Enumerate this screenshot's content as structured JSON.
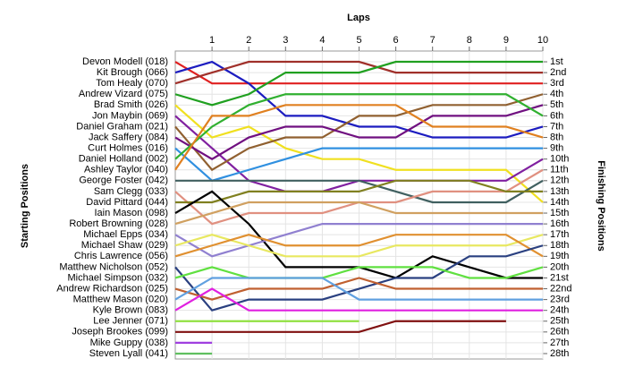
{
  "chart_data": {
    "type": "line",
    "title": "Laps",
    "y_label": "Starting Positions",
    "y2_label": "Finishing Positions",
    "x": [
      0,
      1,
      2,
      3,
      4,
      5,
      6,
      7,
      8,
      9,
      10
    ],
    "xlim": [
      0,
      10
    ],
    "xticks": [
      1,
      2,
      3,
      4,
      5,
      6,
      7,
      8,
      9,
      10
    ],
    "ylim": [
      0.5,
      28.5
    ],
    "y_inverted": true,
    "grid": true,
    "y2lim": [
      0.5,
      28.5
    ],
    "y2ticks": [
      {
        "value": 1,
        "label": "1st"
      },
      {
        "value": 2,
        "label": "2nd"
      },
      {
        "value": 3,
        "label": "3rd"
      },
      {
        "value": 4,
        "label": "4th"
      },
      {
        "value": 5,
        "label": "5th"
      },
      {
        "value": 6,
        "label": "6th"
      },
      {
        "value": 7,
        "label": "7th"
      },
      {
        "value": 8,
        "label": "8th"
      },
      {
        "value": 9,
        "label": "9th"
      },
      {
        "value": 10,
        "label": "10th"
      },
      {
        "value": 11,
        "label": "11th"
      },
      {
        "value": 12,
        "label": "12th"
      },
      {
        "value": 13,
        "label": "13th"
      },
      {
        "value": 14,
        "label": "14th"
      },
      {
        "value": 15,
        "label": "15th"
      },
      {
        "value": 16,
        "label": "16th"
      },
      {
        "value": 17,
        "label": "17th"
      },
      {
        "value": 18,
        "label": "18th"
      },
      {
        "value": 19,
        "label": "19th"
      },
      {
        "value": 20,
        "label": "20th"
      },
      {
        "value": 21,
        "label": "21st"
      },
      {
        "value": 22,
        "label": "22nd"
      },
      {
        "value": 23,
        "label": "23rd"
      },
      {
        "value": 24,
        "label": "24th"
      },
      {
        "value": 25,
        "label": "25th"
      },
      {
        "value": 26,
        "label": "26th"
      },
      {
        "value": 27,
        "label": "27th"
      },
      {
        "value": 28,
        "label": "28th"
      }
    ],
    "series": [
      {
        "name": "Devon Modell (018)",
        "color": "#e02020",
        "values": [
          1,
          3,
          3,
          3,
          3,
          3,
          3,
          3,
          3,
          3,
          3
        ]
      },
      {
        "name": "Kit Brough (066)",
        "color": "#1c1cc0",
        "values": [
          2,
          1,
          3,
          6,
          6,
          7,
          7,
          8,
          8,
          8,
          7
        ]
      },
      {
        "name": "Tom Healy (070)",
        "color": "#a0302a",
        "values": [
          3,
          2,
          1,
          1,
          1,
          1,
          2,
          2,
          2,
          2,
          2
        ]
      },
      {
        "name": "Andrew Vizard (075)",
        "color": "#20a020",
        "values": [
          4,
          5,
          4,
          2,
          2,
          2,
          1,
          1,
          1,
          1,
          1
        ]
      },
      {
        "name": "Brad Smith (026)",
        "color": "#f0e020",
        "values": [
          5,
          8,
          7,
          9,
          10,
          10,
          11,
          11,
          11,
          11,
          14
        ]
      },
      {
        "name": "Jon Maybin (069)",
        "color": "#8020a0",
        "values": [
          6,
          9,
          12,
          13,
          13,
          12,
          12,
          12,
          12,
          12,
          10
        ]
      },
      {
        "name": "Daniel Graham (021)",
        "color": "#906030",
        "values": [
          7,
          11,
          9,
          8,
          8,
          6,
          6,
          5,
          5,
          5,
          4
        ]
      },
      {
        "name": "Jack Saffery (084)",
        "color": "#701080",
        "values": [
          8,
          10,
          8,
          7,
          7,
          8,
          8,
          6,
          6,
          6,
          5
        ]
      },
      {
        "name": "Curt Holmes (016)",
        "color": "#3090e0",
        "values": [
          9,
          12,
          11,
          10,
          9,
          9,
          9,
          9,
          9,
          9,
          9
        ]
      },
      {
        "name": "Daniel Holland (002)",
        "color": "#30b030",
        "values": [
          10,
          7,
          5,
          4,
          4,
          4,
          4,
          4,
          4,
          4,
          6
        ]
      },
      {
        "name": "Ashley Taylor (040)",
        "color": "#e08020",
        "values": [
          11,
          6,
          6,
          5,
          5,
          5,
          5,
          7,
          7,
          7,
          8
        ]
      },
      {
        "name": "George Foster (042)",
        "color": "#406060",
        "values": [
          12,
          12,
          12,
          12,
          12,
          12,
          13,
          14,
          14,
          14,
          12
        ]
      },
      {
        "name": "Sam Clegg (033)",
        "color": "#e09080",
        "values": [
          13,
          16,
          15,
          15,
          15,
          14,
          14,
          13,
          13,
          13,
          11
        ]
      },
      {
        "name": "David Pittard (044)",
        "color": "#808020",
        "values": [
          14,
          14,
          13,
          13,
          13,
          13,
          12,
          12,
          12,
          13,
          13
        ]
      },
      {
        "name": "Iain Mason (098)",
        "color": "#000000",
        "values": [
          15,
          13,
          16,
          20,
          20,
          20,
          21,
          19,
          20,
          21,
          21
        ]
      },
      {
        "name": "Robert Browning (028)",
        "color": "#d0a060",
        "values": [
          16,
          15,
          14,
          14,
          14,
          14,
          15,
          15,
          15,
          15,
          15
        ]
      },
      {
        "name": "Michael Epps (034)",
        "color": "#9080d0",
        "values": [
          17,
          19,
          18,
          17,
          16,
          16,
          16,
          16,
          16,
          16,
          16
        ]
      },
      {
        "name": "Michael Shaw (029)",
        "color": "#e8e860",
        "values": [
          18,
          17,
          18,
          19,
          19,
          19,
          18,
          18,
          18,
          18,
          17
        ]
      },
      {
        "name": "Chris Lawrence (056)",
        "color": "#e09030",
        "values": [
          19,
          18,
          17,
          18,
          18,
          18,
          17,
          17,
          17,
          17,
          19
        ]
      },
      {
        "name": "Matthew Nicholson (052)",
        "color": "#2a4080",
        "values": [
          20,
          24,
          23,
          23,
          23,
          22,
          21,
          21,
          19,
          19,
          18
        ]
      },
      {
        "name": "Michael Simpson (032)",
        "color": "#60e040",
        "values": [
          21,
          20,
          21,
          21,
          21,
          20,
          20,
          20,
          21,
          21,
          20
        ]
      },
      {
        "name": "Andrew Richardson (025)",
        "color": "#c06030",
        "values": [
          22,
          23,
          22,
          22,
          22,
          21,
          22,
          22,
          22,
          22,
          22
        ]
      },
      {
        "name": "Matthew Mason (020)",
        "color": "#60a0e0",
        "values": [
          23,
          21,
          21,
          21,
          21,
          23,
          23,
          23,
          23,
          23,
          23
        ]
      },
      {
        "name": "Kyle Brown (083)",
        "color": "#e020e0",
        "values": [
          24,
          22,
          24,
          24,
          24,
          24,
          24,
          24,
          24,
          24,
          24
        ]
      },
      {
        "name": "Lee Jenner (071)",
        "color": "#90e040",
        "values": [
          25,
          25,
          25,
          25,
          25,
          25,
          null,
          null,
          null,
          null,
          null
        ]
      },
      {
        "name": "Joseph Brookes (099)",
        "color": "#801010",
        "values": [
          26,
          26,
          26,
          26,
          26,
          26,
          25,
          25,
          25,
          25,
          null
        ]
      },
      {
        "name": "Mike Guppy (038)",
        "color": "#a040e0",
        "values": [
          27,
          27,
          null,
          null,
          null,
          null,
          null,
          null,
          null,
          null,
          null
        ]
      },
      {
        "name": "Steven Lyall (041)",
        "color": "#60c060",
        "values": [
          28,
          28,
          null,
          null,
          null,
          null,
          null,
          null,
          null,
          null,
          null
        ]
      }
    ]
  }
}
